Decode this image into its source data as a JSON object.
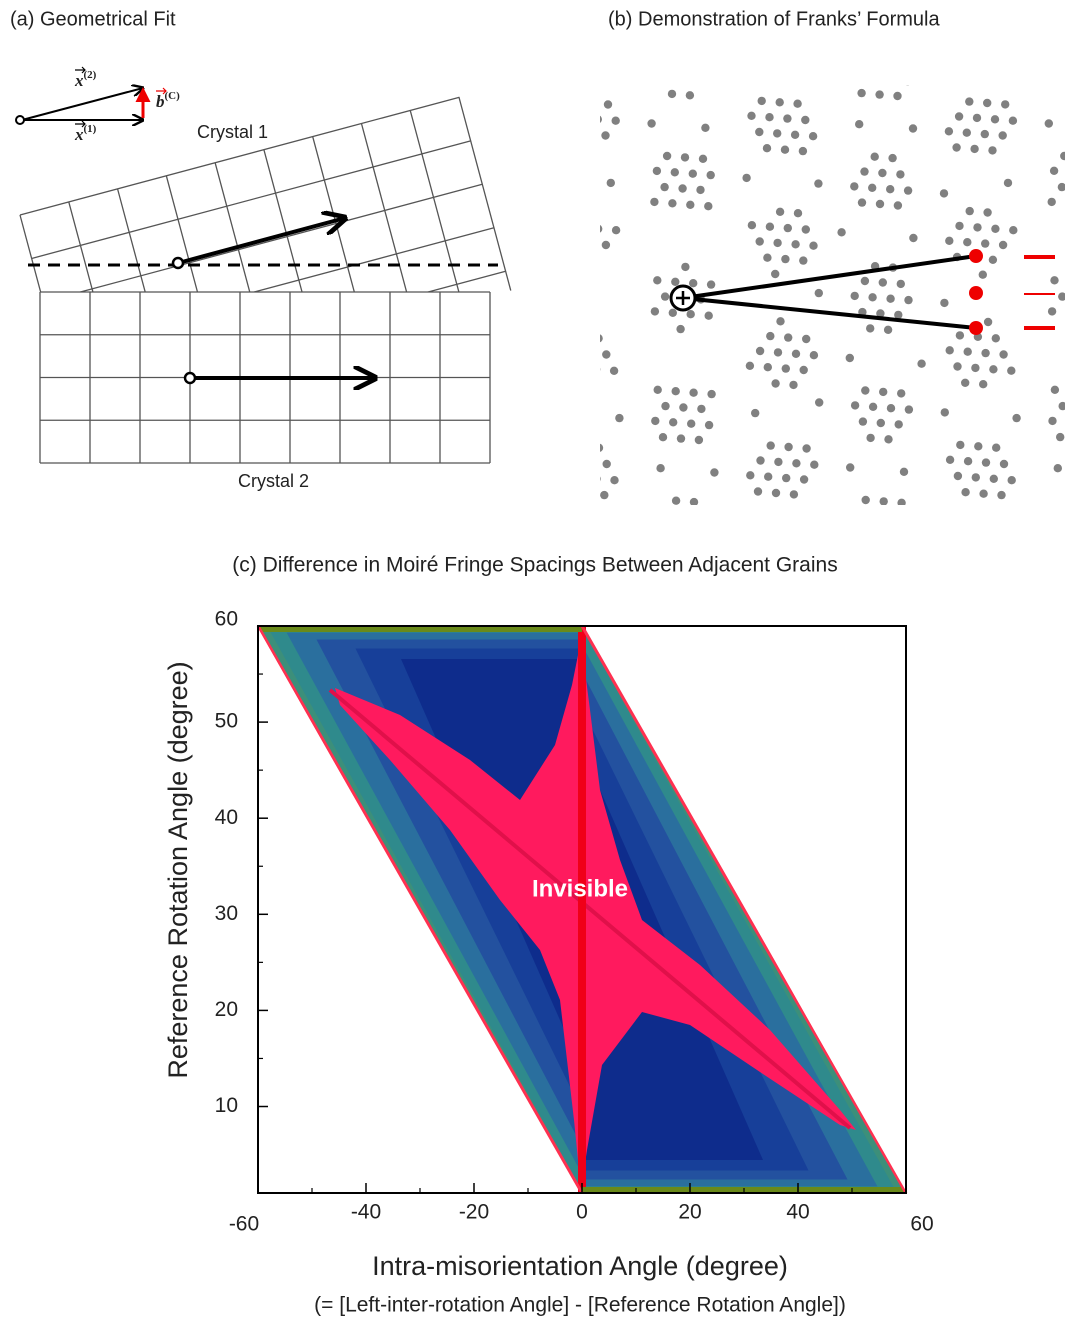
{
  "panels": {
    "a": {
      "title": "(a) Geometrical Fit",
      "crystal_1": "Crystal 1",
      "crystal_2": "Crystal 2",
      "vector_x2": {
        "symbol": "x",
        "superscript": "(2)"
      },
      "vector_x1": {
        "symbol": "x",
        "superscript": "(1)"
      },
      "vector_b": {
        "symbol": "b",
        "superscript": "(C)"
      }
    },
    "b": {
      "title": "(b) Demonstration of Franks’ Formula"
    }
  },
  "chart_data": {
    "type": "contour",
    "title": "(c) Difference in Moiré Fringe Spacings Between Adjacent Grains",
    "xlabel": "Intra-misorientation Angle (degree)",
    "xlabel_note": "(= [Left-inter-rotation Angle] - [Reference Rotation Angle])",
    "ylabel": "Reference Rotation Angle (degree)",
    "xlim": [
      -60,
      60
    ],
    "ylim": [
      1,
      60
    ],
    "xticks": [
      -60,
      -40,
      -20,
      0,
      20,
      40,
      60
    ],
    "yticks": [
      10,
      20,
      30,
      40,
      50,
      60
    ],
    "annotations": [
      {
        "text": "Invisible"
      }
    ]
  }
}
